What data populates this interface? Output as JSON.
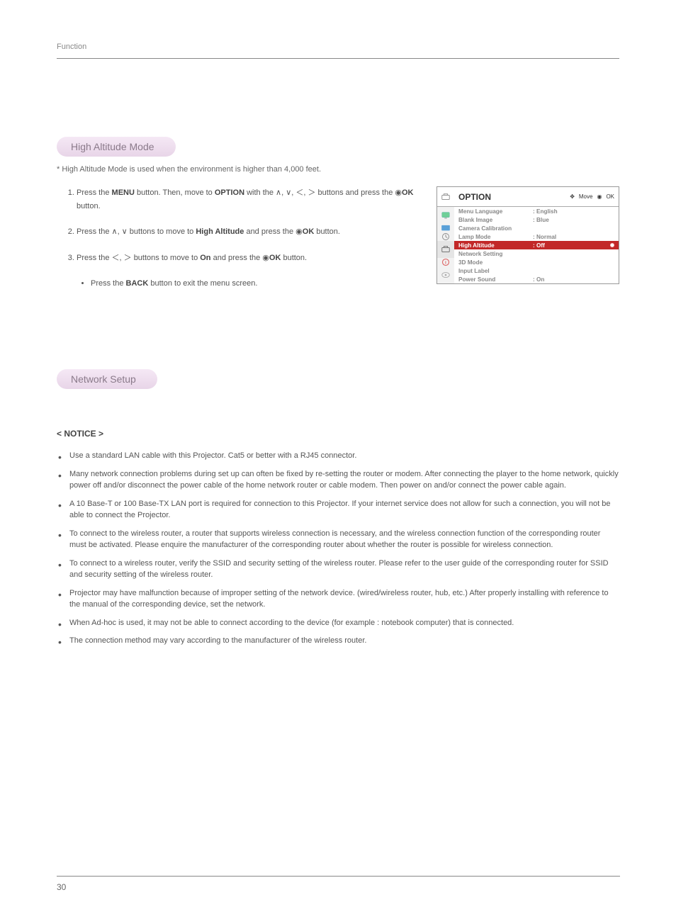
{
  "page": {
    "header": "Function",
    "number": "30"
  },
  "section1": {
    "title": "High Altitude Mode",
    "subtitle": "* High Altitude Mode is used when the environment is higher than 4,000 feet.",
    "step1_a": "Press the ",
    "step1_menu": "MENU",
    "step1_b": " button. Then, move to ",
    "step1_option": "OPTION",
    "step1_c": " with the ∧, ∨, ＜, ＞ buttons and press the ◉",
    "step1_ok": "OK",
    "step1_d": " button.",
    "step2_a": "Press the ∧, ∨ buttons to move to ",
    "step2_ha": "High Altitude",
    "step2_b": " and press the ◉",
    "step2_ok": "OK",
    "step2_c": " button.",
    "step3_a": "Press the ＜, ＞ buttons to move to ",
    "step3_on": "On",
    "step3_b": " and press the ◉",
    "step3_ok": "OK",
    "step3_c": " button.",
    "bullet_a": "Press the ",
    "bullet_back": "BACK",
    "bullet_b": " button to exit the menu screen."
  },
  "osd": {
    "title": "OPTION",
    "move": "Move",
    "ok": "OK",
    "rows": [
      {
        "label": "Menu Language",
        "value": ": English"
      },
      {
        "label": "Blank Image",
        "value": ": Blue"
      },
      {
        "label": "Camera Calibration",
        "value": ""
      },
      {
        "label": "Lamp Mode",
        "value": ": Normal"
      },
      {
        "label": "High Altitude",
        "value": ": Off"
      },
      {
        "label": "Network Setting",
        "value": ""
      },
      {
        "label": "3D Mode",
        "value": ""
      },
      {
        "label": "Input Label",
        "value": ""
      },
      {
        "label": "Power Sound",
        "value": ": On"
      }
    ],
    "highlight_index": 4,
    "colors": {
      "highlight_bg": "#c22828",
      "highlight_text": "#ffffff",
      "text": "#888888",
      "border": "#999999"
    }
  },
  "section2": {
    "title": "Network Setup",
    "notice_heading": "< NOTICE >",
    "items": [
      "Use a standard LAN cable with this Projector. Cat5 or better with a RJ45 connector.",
      "Many network connection problems during set up can often be fixed by re-setting the router or modem. After connecting the player to the home network, quickly power off and/or disconnect the power cable of the home network router or cable modem. Then power on and/or connect the power cable again.",
      "A 10 Base-T or 100 Base-TX LAN port is required for connection to this Projector. If your internet service does not allow for such a connection, you will not be able to connect the Projector.",
      "To connect to the wireless router, a router that supports wireless connection is necessary, and the wireless connection function of the corresponding router must be activated. Please enquire the manufacturer of the corresponding router about whether the router is possible for wireless connection.",
      "To connect to a wireless router, verify the SSID and security setting of the wireless router.  Please refer to the user guide of the corresponding router for SSID and security setting of the wireless router.",
      "Projector may have malfunction because of improper setting of the network device. (wired/wireless router, hub, etc.) After properly installing with reference to the manual of the corresponding device, set the network.",
      "When Ad-hoc is used, it may not be able to connect according to the device (for example : notebook computer) that is connected.",
      "The connection method may vary according to the manufacturer of the wireless router."
    ]
  }
}
